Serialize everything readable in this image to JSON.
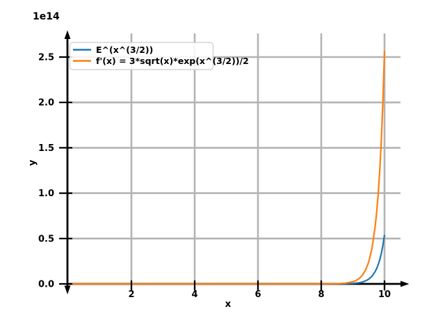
{
  "figure": {
    "background": "#ffffff",
    "offset_text": "1e14"
  },
  "chart_data": {
    "type": "line",
    "title": "",
    "xlabel": "x",
    "ylabel": "y",
    "offset_text": "1e14",
    "grid": true,
    "grid_color": "#b4b4b4",
    "axis_color": "#000000",
    "legend_position": "upper left",
    "xlim": [
      -0.4,
      10.6
    ],
    "ylim_1e14": [
      -0.085,
      2.76
    ],
    "x_ticks": [
      2,
      4,
      6,
      8,
      10
    ],
    "x_tick_labels": [
      "2",
      "4",
      "6",
      "8",
      "10"
    ],
    "y_ticks": [
      0,
      0.5,
      1,
      1.5,
      2,
      2.5
    ],
    "y_tick_labels": [
      "0.0",
      "0.5",
      "1.0",
      "1.5",
      "2.0",
      "2.5"
    ],
    "y_values_unit": "1e14",
    "x": [
      0,
      1,
      2,
      3,
      4,
      5,
      6,
      7,
      7.5,
      8,
      8.25,
      8.5,
      8.75,
      9,
      9.1,
      9.2,
      9.3,
      9.4,
      9.5,
      9.6,
      9.7,
      9.75,
      9.8,
      9.85,
      9.9,
      9.95,
      10
    ],
    "series": [
      {
        "name": "E^(x^(3/2))",
        "color": "#1f77b4",
        "values": [
          0,
          0,
          0,
          0,
          0,
          0,
          0,
          0,
          0,
          0.0001,
          0.0002,
          0.0006,
          0.0017,
          0.0053,
          0.0084,
          0.0132,
          0.0207,
          0.0328,
          0.0521,
          0.0828,
          0.1318,
          0.1666,
          0.2107,
          0.2665,
          0.3373,
          0.4272,
          0.5414
        ]
      },
      {
        "name": "f'(x) = 3*sqrt(x)*exp(x^(3/2))/2",
        "color": "#ff7f0e",
        "values": [
          0,
          0,
          0,
          0,
          0,
          0,
          0,
          0,
          0,
          0.0003,
          0.0008,
          0.0025,
          0.0077,
          0.0239,
          0.0378,
          0.0598,
          0.0949,
          0.151,
          0.2407,
          0.3846,
          0.6157,
          0.7805,
          0.9895,
          1.2546,
          1.5925,
          2.0214,
          2.5676
        ]
      }
    ]
  }
}
